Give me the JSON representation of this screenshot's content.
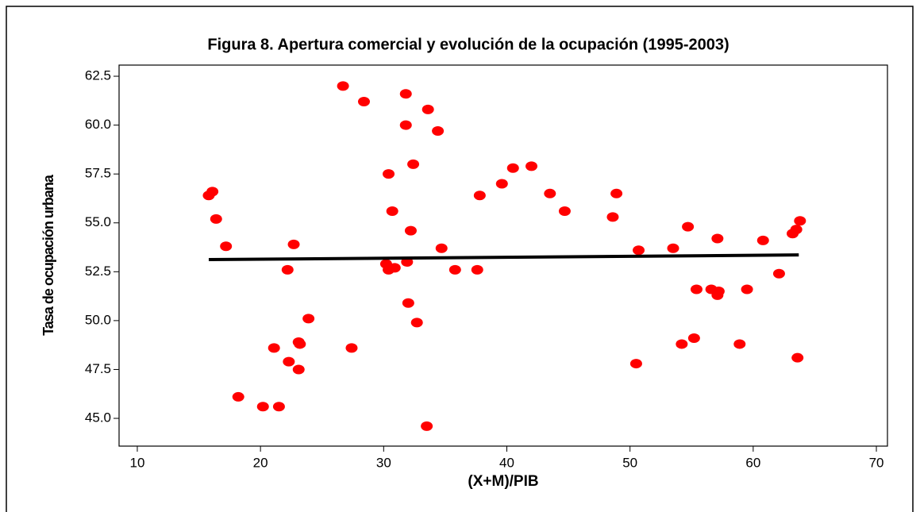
{
  "chart_data": {
    "type": "scatter",
    "title": "Figura 8. Apertura comercial y evolución de la ocupación (1995-2003)",
    "x_label": "(X+M)/PIB",
    "y_label": "Tasa de ocupación urbana",
    "color": "#ff0000",
    "xlim": [
      8.52,
      70.9
    ],
    "ylim": [
      43.58,
      63.07
    ],
    "xticks": [
      10,
      20,
      30,
      40,
      50,
      60,
      70
    ],
    "yticks": [
      {
        "value": 45,
        "label": "45.0"
      },
      47.5,
      {
        "value": 50,
        "label": "50.0"
      },
      52.5,
      {
        "value": 55,
        "label": "55.0"
      },
      57.5,
      {
        "value": 60,
        "label": "60.0"
      },
      62.5
    ],
    "x": [
      15.8,
      16.1,
      16.4,
      17.2,
      18.2,
      20.2,
      21.1,
      21.5,
      22.2,
      22.3,
      22.7,
      23.1,
      23.2,
      23.1,
      23.9,
      26.7,
      27.4,
      28.4,
      30.2,
      30.4,
      30.4,
      30.7,
      30.9,
      31.8,
      31.8,
      31.9,
      32.0,
      32.2,
      32.4,
      32.7,
      33.5,
      33.6,
      34.4,
      34.7,
      35.8,
      37.6,
      37.8,
      39.6,
      40.5,
      42.0,
      43.5,
      44.7,
      48.6,
      48.9,
      50.5,
      50.7,
      53.5,
      54.2,
      54.7,
      55.2,
      55.4,
      56.6,
      57.2,
      57.1,
      57.1,
      59.5,
      58.9,
      60.8,
      62.1,
      63.2,
      63.5,
      63.8,
      63.6
    ],
    "y": [
      56.4,
      56.6,
      55.2,
      53.8,
      46.1,
      45.6,
      48.6,
      45.6,
      52.6,
      47.9,
      53.9,
      48.9,
      48.8,
      47.5,
      50.1,
      62.0,
      48.6,
      61.2,
      52.9,
      52.6,
      57.5,
      55.6,
      52.7,
      60.0,
      61.6,
      53.0,
      50.9,
      54.6,
      58.0,
      49.9,
      44.6,
      60.8,
      59.7,
      53.7,
      52.6,
      52.6,
      56.4,
      57.0,
      57.8,
      57.9,
      56.5,
      55.6,
      55.3,
      56.5,
      47.8,
      53.6,
      53.7,
      48.8,
      54.8,
      49.1,
      51.6,
      51.6,
      51.5,
      51.3,
      54.2,
      51.6,
      48.8,
      54.1,
      52.4,
      54.45,
      54.66,
      55.1,
      48.1
    ],
    "fit": {
      "x": [
        15.8,
        63.7
      ],
      "y": [
        53.12,
        53.36
      ],
      "color": "#000000"
    }
  }
}
